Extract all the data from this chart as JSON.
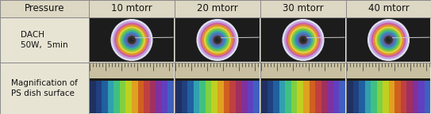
{
  "col_labels": [
    "Pressure",
    "10 mtorr",
    "20 mtorr",
    "30 mtorr",
    "40 mtorr"
  ],
  "row_labels": [
    "DACH\n50W,  5min",
    "Magnification of\nPS dish surface"
  ],
  "header_bg": "#ddd8c4",
  "cell_bg": "#e8e4d4",
  "border_color": "#888888",
  "text_color": "#111111",
  "header_fontsize": 8.5,
  "cell_fontsize": 7.5,
  "fig_width": 5.43,
  "fig_height": 1.44,
  "dpi": 100
}
